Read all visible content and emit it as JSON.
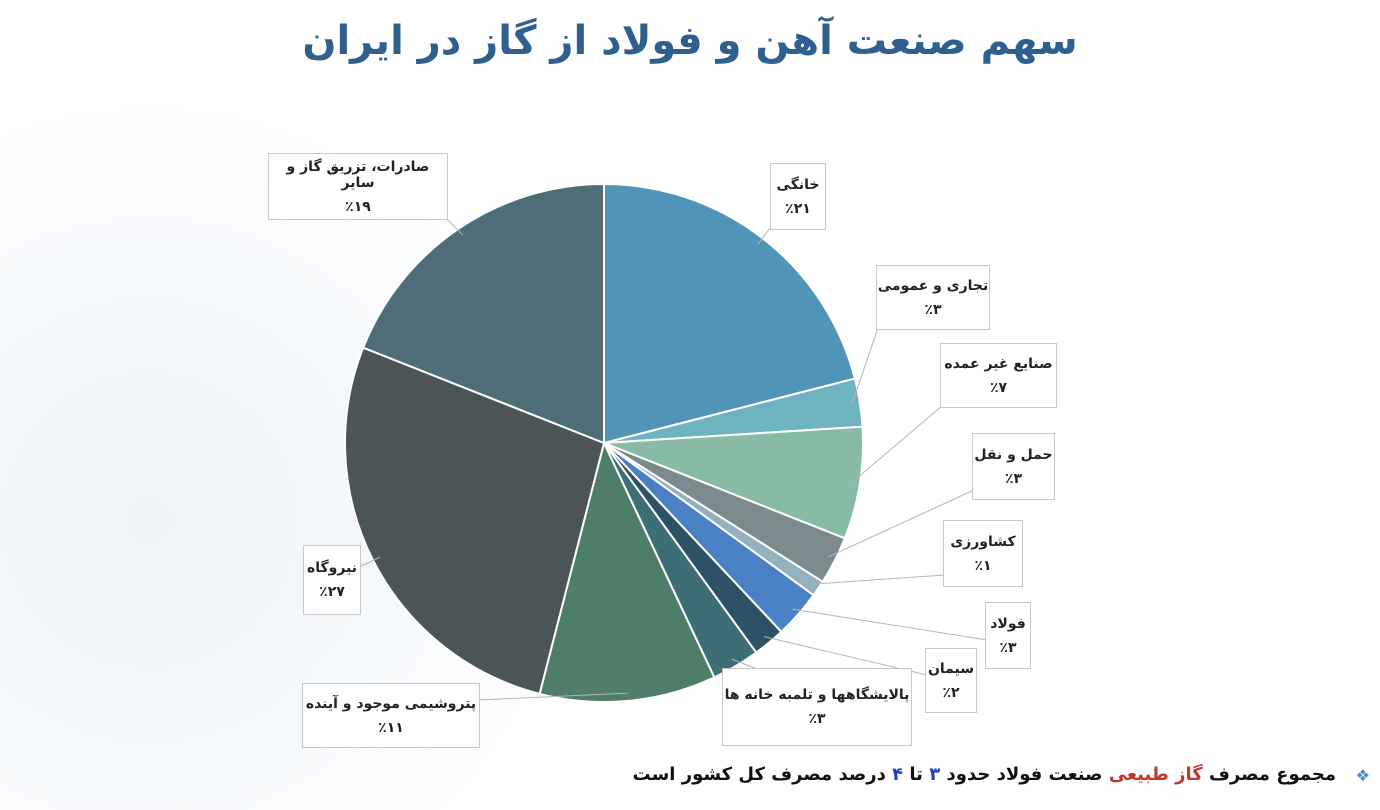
{
  "chart_data": {
    "type": "pie",
    "title": "سهم صنعت آهن و فولاد از گاز در ایران",
    "categories": [
      "خانگی",
      "تجاری و عمومی",
      "صنایع غیر عمده",
      "حمل و نقل",
      "کشاورزی",
      "فولاد",
      "سیمان",
      "پالایشگاهها و تلمبه خانه ها",
      "پتروشیمی موجود و آینده",
      "نیروگاه",
      "صادرات، تزریق گاز و سایر"
    ],
    "values": [
      21,
      3,
      7,
      3,
      1,
      3,
      2,
      3,
      11,
      27,
      19
    ],
    "value_labels": [
      "٪۲۱",
      "٪۳",
      "٪۷",
      "٪۳",
      "٪۱",
      "٪۳",
      "٪۲",
      "٪۳",
      "٪۱۱",
      "٪۲۷",
      "٪۱۹"
    ],
    "colors": [
      "#5094b8",
      "#6db3c0",
      "#88baa6",
      "#7b8a8c",
      "#95b1bd",
      "#4a80c4",
      "#2d5266",
      "#3e6e75",
      "#4e7d6a",
      "#4b5558",
      "#4f6d77"
    ],
    "annotation": [
      "مجموع مصرف",
      "گاز طبیعی",
      "صنعت فولاد حدود",
      "۳",
      "تا",
      "۴",
      "درصد مصرف کل کشور است"
    ]
  }
}
